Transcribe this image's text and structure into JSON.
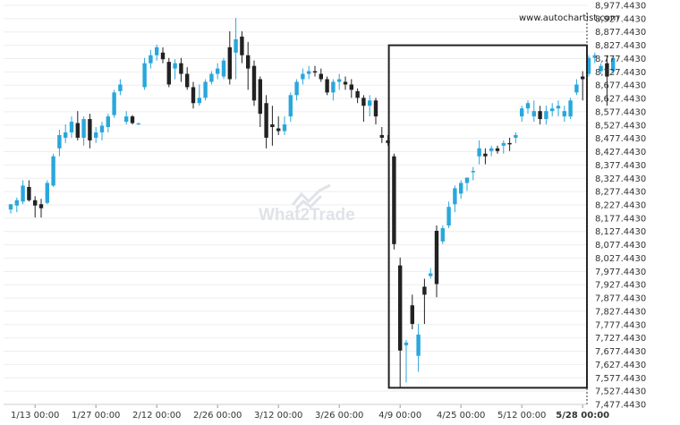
{
  "watermark": {
    "text": "What2Trade"
  },
  "credit": "www.autochartist.com",
  "chart_data": {
    "type": "candlestick",
    "title": "",
    "xlabel": "",
    "ylabel": "",
    "ylim": [
      7477.443,
      8977.443
    ],
    "y_ticks": [
      "8,977.4430",
      "8,927.4430",
      "8,877.4430",
      "8,827.4430",
      "8,777.4430",
      "8,727.4430",
      "8,677.4430",
      "8,627.4430",
      "8,577.4430",
      "8,527.4430",
      "8,477.4430",
      "8,427.4430",
      "8,377.4430",
      "8,327.4430",
      "8,277.4430",
      "8,227.4430",
      "8,177.4430",
      "8,127.4430",
      "8,077.4430",
      "8,027.4430",
      "7,977.4430",
      "7,927.4430",
      "7,877.4430",
      "7,827.4430",
      "7,777.4430",
      "7,727.4430",
      "7,677.4430",
      "7,627.4430",
      "7,577.4430",
      "7,527.4430",
      "7,477.4430"
    ],
    "x_ticks": [
      {
        "label": "1/13 00:00",
        "index": 4
      },
      {
        "label": "1/27 00:00",
        "index": 14
      },
      {
        "label": "2/12 00:00",
        "index": 24
      },
      {
        "label": "2/26 00:00",
        "index": 34
      },
      {
        "label": "3/12 00:00",
        "index": 44
      },
      {
        "label": "3/26 00:00",
        "index": 54
      },
      {
        "label": "4/9 00:00",
        "index": 64
      },
      {
        "label": "4/25 00:00",
        "index": 74
      },
      {
        "label": "5/12 00:00",
        "index": 84
      },
      {
        "label": "5/28 00:00",
        "index": 94
      }
    ],
    "colors": {
      "up": "#29a7dc",
      "down": "#222222",
      "box": "#222222",
      "grid": "#eeeeee"
    },
    "highlight_box": {
      "from_index": 62,
      "to_index": 95,
      "top": 8827.443,
      "bottom": 7540
    },
    "vertical_marker": {
      "index": 95,
      "style": "dashed"
    },
    "candles": [
      {
        "o": 8210,
        "h": 8230,
        "l": 8195,
        "c": 8230
      },
      {
        "o": 8225,
        "h": 8255,
        "l": 8200,
        "c": 8245
      },
      {
        "o": 8240,
        "h": 8320,
        "l": 8230,
        "c": 8300
      },
      {
        "o": 8295,
        "h": 8320,
        "l": 8240,
        "c": 8245
      },
      {
        "o": 8245,
        "h": 8260,
        "l": 8180,
        "c": 8225
      },
      {
        "o": 8230,
        "h": 8250,
        "l": 8180,
        "c": 8215
      },
      {
        "o": 8235,
        "h": 8320,
        "l": 8230,
        "c": 8310
      },
      {
        "o": 8300,
        "h": 8420,
        "l": 8295,
        "c": 8410
      },
      {
        "o": 8440,
        "h": 8510,
        "l": 8410,
        "c": 8490
      },
      {
        "o": 8480,
        "h": 8530,
        "l": 8460,
        "c": 8500
      },
      {
        "o": 8500,
        "h": 8560,
        "l": 8480,
        "c": 8540
      },
      {
        "o": 8535,
        "h": 8580,
        "l": 8470,
        "c": 8480
      },
      {
        "o": 8480,
        "h": 8560,
        "l": 8450,
        "c": 8550
      },
      {
        "o": 8550,
        "h": 8570,
        "l": 8440,
        "c": 8470
      },
      {
        "o": 8480,
        "h": 8520,
        "l": 8460,
        "c": 8500
      },
      {
        "o": 8500,
        "h": 8540,
        "l": 8470,
        "c": 8525
      },
      {
        "o": 8520,
        "h": 8570,
        "l": 8500,
        "c": 8560
      },
      {
        "o": 8565,
        "h": 8660,
        "l": 8555,
        "c": 8650
      },
      {
        "o": 8655,
        "h": 8700,
        "l": 8640,
        "c": 8680
      },
      {
        "o": 8540,
        "h": 8580,
        "l": 8530,
        "c": 8560
      },
      {
        "o": 8560,
        "h": 8565,
        "l": 8530,
        "c": 8535
      },
      {
        "o": 8532,
        "h": 8536,
        "l": 8528,
        "c": 8534
      },
      {
        "o": 8670,
        "h": 8780,
        "l": 8660,
        "c": 8760
      },
      {
        "o": 8760,
        "h": 8810,
        "l": 8740,
        "c": 8790
      },
      {
        "o": 8790,
        "h": 8830,
        "l": 8770,
        "c": 8820
      },
      {
        "o": 8800,
        "h": 8820,
        "l": 8760,
        "c": 8775
      },
      {
        "o": 8765,
        "h": 8780,
        "l": 8670,
        "c": 8680
      },
      {
        "o": 8740,
        "h": 8775,
        "l": 8700,
        "c": 8760
      },
      {
        "o": 8760,
        "h": 8780,
        "l": 8690,
        "c": 8720
      },
      {
        "o": 8720,
        "h": 8745,
        "l": 8660,
        "c": 8670
      },
      {
        "o": 8670,
        "h": 8690,
        "l": 8590,
        "c": 8610
      },
      {
        "o": 8610,
        "h": 8680,
        "l": 8600,
        "c": 8630
      },
      {
        "o": 8630,
        "h": 8700,
        "l": 8620,
        "c": 8690
      },
      {
        "o": 8690,
        "h": 8730,
        "l": 8680,
        "c": 8720
      },
      {
        "o": 8720,
        "h": 8760,
        "l": 8700,
        "c": 8740
      },
      {
        "o": 8710,
        "h": 8780,
        "l": 8700,
        "c": 8770
      },
      {
        "o": 8820,
        "h": 8880,
        "l": 8680,
        "c": 8700
      },
      {
        "o": 8800,
        "h": 8930,
        "l": 8700,
        "c": 8850
      },
      {
        "o": 8860,
        "h": 8880,
        "l": 8760,
        "c": 8790
      },
      {
        "o": 8790,
        "h": 8840,
        "l": 8660,
        "c": 8740
      },
      {
        "o": 8750,
        "h": 8770,
        "l": 8600,
        "c": 8620
      },
      {
        "o": 8700,
        "h": 8710,
        "l": 8520,
        "c": 8570
      },
      {
        "o": 8610,
        "h": 8640,
        "l": 8440,
        "c": 8480
      },
      {
        "o": 8530,
        "h": 8600,
        "l": 8450,
        "c": 8520
      },
      {
        "o": 8515,
        "h": 8560,
        "l": 8490,
        "c": 8505
      },
      {
        "o": 8505,
        "h": 8560,
        "l": 8490,
        "c": 8530
      },
      {
        "o": 8560,
        "h": 8650,
        "l": 8540,
        "c": 8640
      },
      {
        "o": 8640,
        "h": 8700,
        "l": 8620,
        "c": 8690
      },
      {
        "o": 8700,
        "h": 8740,
        "l": 8680,
        "c": 8720
      },
      {
        "o": 8720,
        "h": 8750,
        "l": 8700,
        "c": 8730
      },
      {
        "o": 8730,
        "h": 8750,
        "l": 8710,
        "c": 8725
      },
      {
        "o": 8720,
        "h": 8740,
        "l": 8690,
        "c": 8700
      },
      {
        "o": 8700,
        "h": 8710,
        "l": 8640,
        "c": 8650
      },
      {
        "o": 8650,
        "h": 8700,
        "l": 8620,
        "c": 8690
      },
      {
        "o": 8690,
        "h": 8720,
        "l": 8660,
        "c": 8700
      },
      {
        "o": 8690,
        "h": 8710,
        "l": 8660,
        "c": 8680
      },
      {
        "o": 8680,
        "h": 8700,
        "l": 8630,
        "c": 8660
      },
      {
        "o": 8655,
        "h": 8665,
        "l": 8610,
        "c": 8630
      },
      {
        "o": 8630,
        "h": 8640,
        "l": 8540,
        "c": 8600
      },
      {
        "o": 8600,
        "h": 8640,
        "l": 8560,
        "c": 8620
      },
      {
        "o": 8620,
        "h": 8630,
        "l": 8530,
        "c": 8560
      },
      {
        "o": 8490,
        "h": 8520,
        "l": 8460,
        "c": 8480
      },
      {
        "o": 8470,
        "h": 8490,
        "l": 8450,
        "c": 8460
      },
      {
        "o": 8410,
        "h": 8420,
        "l": 8060,
        "c": 8080
      },
      {
        "o": 8000,
        "h": 8030,
        "l": 7540,
        "c": 7680
      },
      {
        "o": 7700,
        "h": 7720,
        "l": 7560,
        "c": 7710
      },
      {
        "o": 7850,
        "h": 7890,
        "l": 7760,
        "c": 7780
      },
      {
        "o": 7660,
        "h": 7780,
        "l": 7600,
        "c": 7740
      },
      {
        "o": 7920,
        "h": 7950,
        "l": 7780,
        "c": 7890
      },
      {
        "o": 7960,
        "h": 7990,
        "l": 7950,
        "c": 7970
      },
      {
        "o": 8130,
        "h": 8150,
        "l": 7880,
        "c": 7930
      },
      {
        "o": 8090,
        "h": 8150,
        "l": 8080,
        "c": 8140
      },
      {
        "o": 8150,
        "h": 8240,
        "l": 8140,
        "c": 8220
      },
      {
        "o": 8230,
        "h": 8300,
        "l": 8200,
        "c": 8290
      },
      {
        "o": 8270,
        "h": 8320,
        "l": 8250,
        "c": 8310
      },
      {
        "o": 8310,
        "h": 8330,
        "l": 8280,
        "c": 8330
      },
      {
        "o": 8350,
        "h": 8370,
        "l": 8320,
        "c": 8355
      },
      {
        "o": 8410,
        "h": 8470,
        "l": 8380,
        "c": 8440
      },
      {
        "o": 8420,
        "h": 8440,
        "l": 8380,
        "c": 8410
      },
      {
        "o": 8430,
        "h": 8450,
        "l": 8410,
        "c": 8440
      },
      {
        "o": 8440,
        "h": 8450,
        "l": 8420,
        "c": 8430
      },
      {
        "o": 8450,
        "h": 8470,
        "l": 8420,
        "c": 8460
      },
      {
        "o": 8460,
        "h": 8480,
        "l": 8430,
        "c": 8455
      },
      {
        "o": 8480,
        "h": 8500,
        "l": 8460,
        "c": 8490
      },
      {
        "o": 8560,
        "h": 8600,
        "l": 8540,
        "c": 8590
      },
      {
        "o": 8590,
        "h": 8620,
        "l": 8570,
        "c": 8610
      },
      {
        "o": 8560,
        "h": 8620,
        "l": 8540,
        "c": 8580
      },
      {
        "o": 8580,
        "h": 8600,
        "l": 8530,
        "c": 8550
      },
      {
        "o": 8550,
        "h": 8600,
        "l": 8530,
        "c": 8580
      },
      {
        "o": 8580,
        "h": 8610,
        "l": 8560,
        "c": 8590
      },
      {
        "o": 8590,
        "h": 8620,
        "l": 8560,
        "c": 8600
      },
      {
        "o": 8560,
        "h": 8600,
        "l": 8540,
        "c": 8580
      },
      {
        "o": 8560,
        "h": 8630,
        "l": 8550,
        "c": 8620
      },
      {
        "o": 8650,
        "h": 8700,
        "l": 8640,
        "c": 8680
      },
      {
        "o": 8710,
        "h": 8730,
        "l": 8620,
        "c": 8700
      },
      {
        "o": 8720,
        "h": 8790,
        "l": 8710,
        "c": 8780
      },
      {
        "o": 8780,
        "h": 8800,
        "l": 8760,
        "c": 8790
      },
      {
        "o": 8730,
        "h": 8760,
        "l": 8720,
        "c": 8750
      },
      {
        "o": 8760,
        "h": 8790,
        "l": 8600,
        "c": 8710
      },
      {
        "o": 8730,
        "h": 8790,
        "l": 8720,
        "c": 8780
      }
    ]
  }
}
